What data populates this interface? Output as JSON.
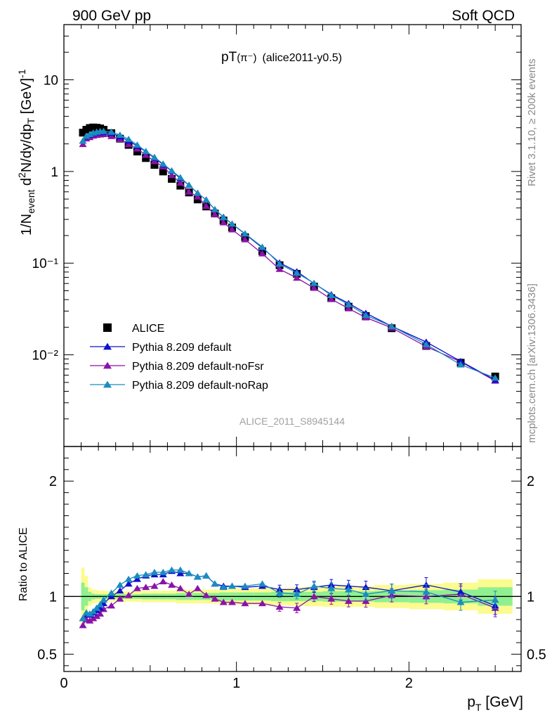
{
  "header": {
    "left": "900 GeV pp",
    "right": "Soft QCD"
  },
  "side_text": {
    "rivet": "Rivet 3.1.10, ≥ 200k events",
    "mcplots": "mcplots.cern.ch [arXiv:1306.3436]"
  },
  "watermark": "ALICE_2011_S8945144",
  "plot_title": {
    "main": "pT",
    "particle": "(π⁻)",
    "tag": "(alice2011-y0.5)"
  },
  "colors": {
    "ALICE": "#000000",
    "default": "#1010cc",
    "noFsr": "#8b12a8",
    "noRap": "#1a8cbf",
    "band_inner": "#90f090",
    "band_outer": "#fbfb90"
  },
  "chart_data": [
    {
      "type": "line",
      "title": "pT(π⁻) (alice2011-y0.5)",
      "xlabel": "p_T [GeV]",
      "ylabel": "1/N_event d²N/dy/dp_T [GeV]⁻¹",
      "yscale": "log",
      "xlim": [
        0,
        2.65
      ],
      "ylim": [
        0.001,
        40
      ],
      "y_ticks": [
        "10⁻²",
        "10⁻¹",
        "1",
        "10"
      ],
      "legend_position": "lower-left",
      "x": [
        0.11,
        0.13,
        0.15,
        0.17,
        0.19,
        0.21,
        0.23,
        0.275,
        0.325,
        0.375,
        0.425,
        0.475,
        0.525,
        0.575,
        0.625,
        0.675,
        0.725,
        0.775,
        0.825,
        0.875,
        0.925,
        0.975,
        1.05,
        1.15,
        1.25,
        1.35,
        1.45,
        1.55,
        1.65,
        1.75,
        1.9,
        2.1,
        2.3,
        2.5
      ],
      "series": [
        {
          "name": "ALICE",
          "key": "ALICE",
          "marker": "square",
          "values": [
            2.65,
            2.85,
            2.98,
            3.02,
            3.0,
            2.95,
            2.85,
            2.62,
            2.28,
            1.95,
            1.65,
            1.4,
            1.18,
            1.0,
            0.83,
            0.7,
            0.59,
            0.495,
            0.415,
            0.348,
            0.292,
            0.245,
            0.192,
            0.135,
            0.095,
            0.0765,
            0.0555,
            0.0415,
            0.0335,
            0.0265,
            0.0195,
            0.0125,
            0.0082,
            0.0058
          ]
        },
        {
          "name": "Pythia 8.209 default",
          "key": "default",
          "marker": "triangle",
          "values": [
            2.15,
            2.4,
            2.5,
            2.6,
            2.65,
            2.66,
            2.68,
            2.62,
            2.4,
            2.16,
            1.89,
            1.65,
            1.4,
            1.19,
            1.01,
            0.84,
            0.71,
            0.58,
            0.49,
            0.385,
            0.318,
            0.268,
            0.208,
            0.147,
            0.101,
            0.081,
            0.06,
            0.0455,
            0.0365,
            0.0285,
            0.0205,
            0.0138,
            0.0085,
            0.0053
          ]
        },
        {
          "name": "Pythia 8.209 default-noFsr",
          "key": "noFsr",
          "marker": "triangle",
          "values": [
            1.98,
            2.28,
            2.36,
            2.45,
            2.49,
            2.52,
            2.54,
            2.42,
            2.24,
            1.98,
            1.77,
            1.51,
            1.29,
            1.13,
            0.91,
            0.75,
            0.6,
            0.53,
            0.42,
            0.34,
            0.277,
            0.232,
            0.181,
            0.127,
            0.086,
            0.069,
            0.0535,
            0.0405,
            0.032,
            0.0255,
            0.0197,
            0.0123,
            0.0084,
            0.0052
          ]
        },
        {
          "name": "Pythia 8.209 default-noRap",
          "key": "noRap",
          "marker": "triangle",
          "values": [
            2.15,
            2.44,
            2.54,
            2.64,
            2.7,
            2.74,
            2.75,
            2.7,
            2.5,
            2.25,
            1.95,
            1.66,
            1.43,
            1.21,
            1.02,
            0.86,
            0.71,
            0.58,
            0.49,
            0.385,
            0.315,
            0.268,
            0.21,
            0.15,
            0.098,
            0.078,
            0.0605,
            0.0445,
            0.0355,
            0.027,
            0.0205,
            0.013,
            0.0078,
            0.0056
          ]
        }
      ]
    },
    {
      "type": "line",
      "xlabel": "p_T [GeV]",
      "ylabel": "Ratio to ALICE",
      "xlim": [
        0,
        2.65
      ],
      "ylim": [
        0.35,
        2.3
      ],
      "x_ticks": [
        "0",
        "1",
        "2"
      ],
      "y_ticks": [
        "0.5",
        "1",
        "2"
      ],
      "reference_line": 1,
      "x": [
        0.11,
        0.13,
        0.15,
        0.17,
        0.19,
        0.21,
        0.23,
        0.275,
        0.325,
        0.375,
        0.425,
        0.475,
        0.525,
        0.575,
        0.625,
        0.675,
        0.725,
        0.775,
        0.825,
        0.875,
        0.925,
        0.975,
        1.05,
        1.15,
        1.25,
        1.35,
        1.45,
        1.55,
        1.65,
        1.75,
        1.9,
        2.1,
        2.3,
        2.5
      ],
      "bands": {
        "edges": [
          0.1,
          0.12,
          0.14,
          0.16,
          0.18,
          0.2,
          0.22,
          0.25,
          0.3,
          0.35,
          0.4,
          0.45,
          0.5,
          0.55,
          0.6,
          0.65,
          0.7,
          0.75,
          0.8,
          0.85,
          0.9,
          0.95,
          1.0,
          1.1,
          1.2,
          1.3,
          1.4,
          1.5,
          1.6,
          1.7,
          1.8,
          2.0,
          2.2,
          2.4,
          2.6
        ],
        "inner_half_width": [
          0.12,
          0.08,
          0.04,
          0.025,
          0.02,
          0.02,
          0.02,
          0.02,
          0.02,
          0.02,
          0.02,
          0.025,
          0.025,
          0.025,
          0.025,
          0.03,
          0.03,
          0.03,
          0.03,
          0.03,
          0.035,
          0.035,
          0.035,
          0.035,
          0.04,
          0.04,
          0.04,
          0.045,
          0.045,
          0.045,
          0.05,
          0.055,
          0.06,
          0.08
        ],
        "outer_half_width": [
          0.25,
          0.18,
          0.08,
          0.06,
          0.055,
          0.05,
          0.05,
          0.045,
          0.045,
          0.045,
          0.045,
          0.05,
          0.05,
          0.05,
          0.05,
          0.06,
          0.06,
          0.06,
          0.06,
          0.06,
          0.065,
          0.065,
          0.07,
          0.07,
          0.075,
          0.08,
          0.085,
          0.09,
          0.09,
          0.09,
          0.1,
          0.11,
          0.12,
          0.15
        ]
      },
      "series": [
        {
          "name": "Pythia 8.209 default",
          "key": "default",
          "values": [
            0.81,
            0.84,
            0.84,
            0.86,
            0.88,
            0.9,
            0.94,
            1.0,
            1.05,
            1.11,
            1.15,
            1.18,
            1.19,
            1.19,
            1.22,
            1.2,
            1.2,
            1.17,
            1.18,
            1.11,
            1.09,
            1.09,
            1.08,
            1.09,
            1.06,
            1.06,
            1.08,
            1.1,
            1.09,
            1.08,
            1.05,
            1.1,
            1.04,
            0.92
          ]
        },
        {
          "name": "Pythia 8.209 default-noFsr",
          "key": "noFsr",
          "values": [
            0.75,
            0.8,
            0.79,
            0.81,
            0.83,
            0.85,
            0.89,
            0.92,
            0.98,
            1.01,
            1.07,
            1.08,
            1.09,
            1.13,
            1.1,
            1.07,
            1.02,
            1.07,
            1.01,
            0.98,
            0.95,
            0.95,
            0.94,
            0.94,
            0.91,
            0.9,
            1.0,
            0.98,
            0.96,
            0.96,
            1.01,
            1.0,
            1.02,
            0.9
          ]
        },
        {
          "name": "Pythia 8.209 default-noRap",
          "key": "noRap",
          "values": [
            0.81,
            0.86,
            0.85,
            0.87,
            0.9,
            0.93,
            0.97,
            1.03,
            1.1,
            1.15,
            1.18,
            1.19,
            1.21,
            1.21,
            1.23,
            1.23,
            1.2,
            1.17,
            1.18,
            1.11,
            1.08,
            1.09,
            1.09,
            1.11,
            1.03,
            1.02,
            1.09,
            1.07,
            1.06,
            1.02,
            1.05,
            1.04,
            0.95,
            0.97
          ]
        }
      ]
    }
  ]
}
